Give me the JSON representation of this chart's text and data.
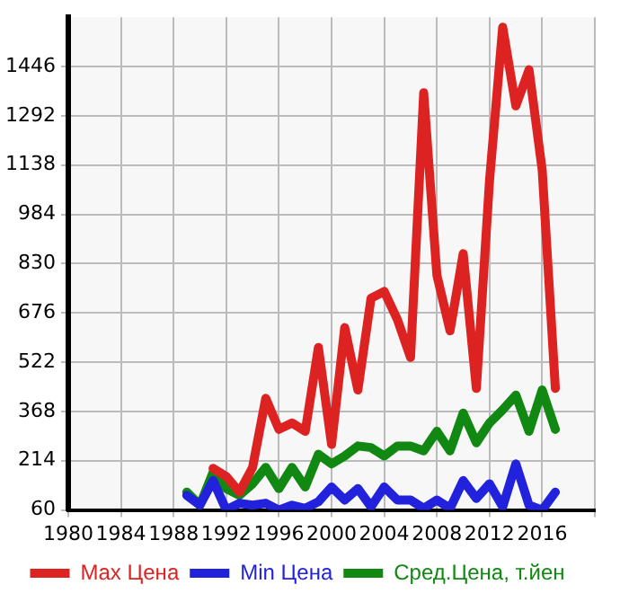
{
  "chart_data": {
    "type": "line",
    "x": [
      1989,
      1990,
      1991,
      1992,
      1993,
      1994,
      1995,
      1996,
      1997,
      1998,
      1999,
      2000,
      2001,
      2002,
      2003,
      2004,
      2005,
      2006,
      2007,
      2008,
      2009,
      2010,
      2011,
      2012,
      2013,
      2014,
      2015,
      2016,
      2017
    ],
    "xlim": [
      1980,
      2020
    ],
    "xticks": [
      1980,
      1984,
      1988,
      1992,
      1996,
      2000,
      2004,
      2008,
      2012,
      2016,
      {
        "value": 2020,
        "label": null
      }
    ],
    "ylim": [
      60,
      1600
    ],
    "yticks": [
      60,
      214,
      368,
      522,
      676,
      830,
      984,
      1138,
      1292,
      1446
    ],
    "grid": true,
    "legend": "bottom",
    "marker": "none",
    "line_style": "solid",
    "series": [
      {
        "name": "Max Цена",
        "color": "#dd2222",
        "values": [
          null,
          null,
          190,
          165,
          116,
          193,
          409,
          312,
          332,
          306,
          568,
          265,
          630,
          435,
          722,
          743,
          655,
          537,
          1364,
          794,
          620,
          861,
          440,
          1090,
          1569,
          1323,
          1436,
          1123,
          440
        ]
      },
      {
        "name": "Min Цена",
        "color": "#2222dd",
        "values": [
          106,
          75,
          152,
          60,
          81,
          75,
          81,
          60,
          75,
          65,
          86,
          132,
          91,
          127,
          70,
          132,
          91,
          91,
          65,
          91,
          65,
          152,
          96,
          142,
          70,
          204,
          75,
          60,
          116
        ]
      },
      {
        "name": "Сред.Цена, т.йен",
        "color": "#118811",
        "values": [
          116,
          75,
          178,
          127,
          106,
          142,
          193,
          127,
          193,
          132,
          234,
          204,
          229,
          260,
          255,
          229,
          260,
          260,
          245,
          306,
          245,
          363,
          270,
          332,
          373,
          419,
          306,
          435,
          312
        ]
      }
    ]
  }
}
